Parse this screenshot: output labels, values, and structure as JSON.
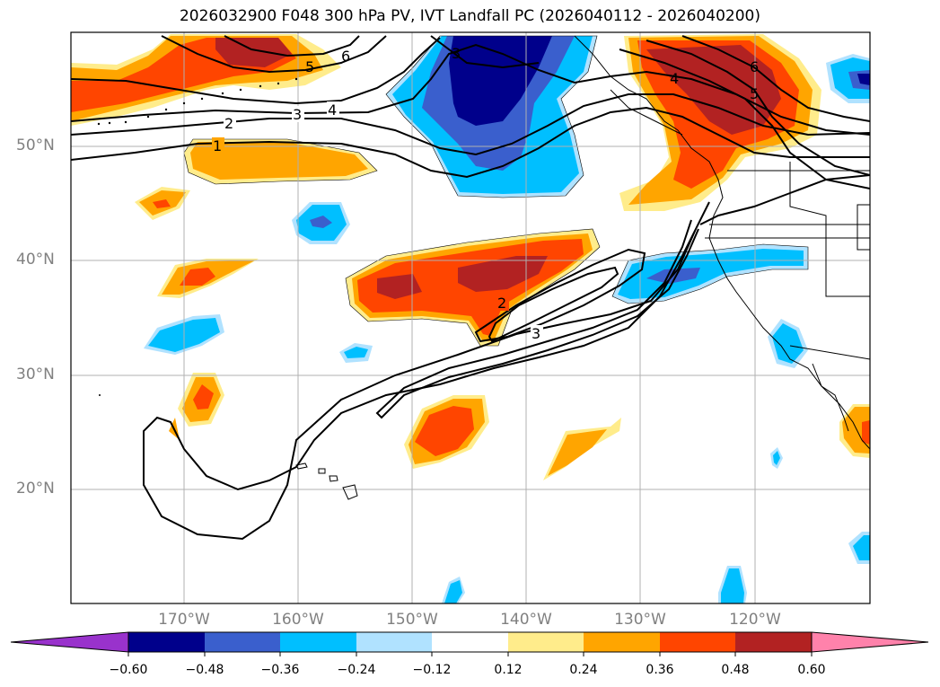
{
  "title": "2026032900 F048 300 hPa PV, IVT Landfall PC (2026040112 - 2026040200)",
  "lon_labels": [
    "170°W",
    "160°W",
    "150°W",
    "140°W",
    "130°W",
    "120°W"
  ],
  "lat_labels": [
    "50°N",
    "40°N",
    "30°N",
    "20°N"
  ],
  "contour_labels": [
    "1",
    "2",
    "3",
    "4",
    "5",
    "6",
    "2",
    "3",
    "3",
    "4",
    "6",
    "5"
  ],
  "colorbar": {
    "ticks": [
      "−0.60",
      "−0.48",
      "−0.36",
      "−0.24",
      "−0.12",
      "0.12",
      "0.24",
      "0.36",
      "0.48",
      "0.60"
    ],
    "colors": [
      "#9932cc",
      "#00008b",
      "#3a5fcd",
      "#00bfff",
      "#b0e2ff",
      "#ffffff",
      "#ffec8b",
      "#ffa500",
      "#ff4500",
      "#b22222",
      "#ff82ab"
    ]
  },
  "colors": {
    "neg_strong": "#00008b",
    "neg_mid": "#3a5fcd",
    "neg": "#00bfff",
    "neg_weak": "#b0e2ff",
    "pos_weak": "#ffec8b",
    "pos": "#ffa500",
    "pos_mid": "#ff4500",
    "pos_strong": "#b22222"
  }
}
